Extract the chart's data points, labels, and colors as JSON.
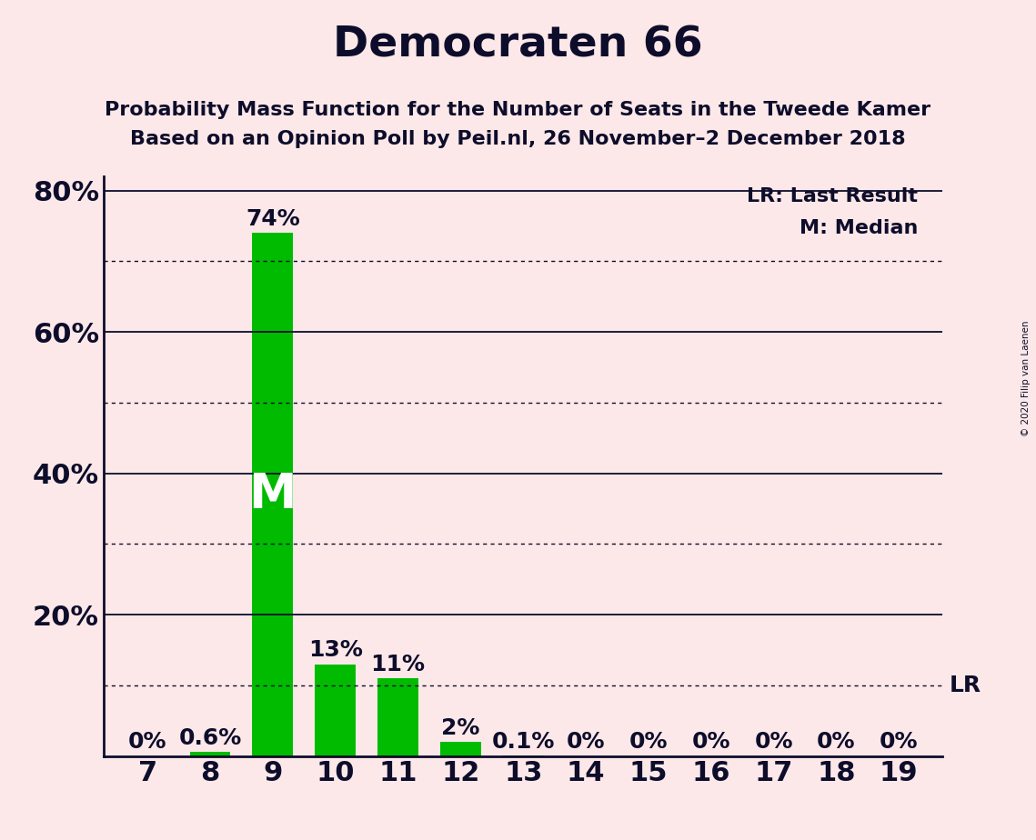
{
  "title": "Democraten 66",
  "subtitle1": "Probability Mass Function for the Number of Seats in the Tweede Kamer",
  "subtitle2": "Based on an Opinion Poll by Peil.nl, 26 November–2 December 2018",
  "copyright": "© 2020 Filip van Laenen",
  "seats": [
    7,
    8,
    9,
    10,
    11,
    12,
    13,
    14,
    15,
    16,
    17,
    18,
    19
  ],
  "probabilities": [
    0.0,
    0.006,
    0.74,
    0.13,
    0.11,
    0.02,
    0.001,
    0.0,
    0.0,
    0.0,
    0.0,
    0.0,
    0.0
  ],
  "labels": [
    "0%",
    "0.6%",
    "74%",
    "13%",
    "11%",
    "2%",
    "0.1%",
    "0%",
    "0%",
    "0%",
    "0%",
    "0%",
    "0%"
  ],
  "bar_color": "#00bb00",
  "background_color": "#fce8e8",
  "text_color": "#0d0d2b",
  "median_seat": 9,
  "lr_value": 0.1,
  "yticks": [
    0.0,
    0.2,
    0.4,
    0.6,
    0.8
  ],
  "ytick_labels": [
    "",
    "20%",
    "40%",
    "60%",
    "80%"
  ],
  "solid_lines": [
    0.2,
    0.4,
    0.6,
    0.8
  ],
  "dotted_lines": [
    0.1,
    0.3,
    0.5,
    0.7
  ],
  "title_fontsize": 34,
  "subtitle_fontsize": 16,
  "axis_fontsize": 22,
  "bar_label_fontsize": 18,
  "legend_fontsize": 16,
  "m_fontsize": 38
}
